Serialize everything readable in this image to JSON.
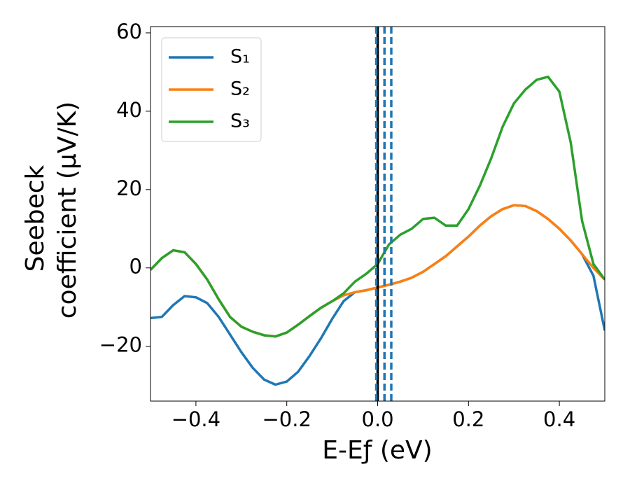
{
  "chart_data": {
    "type": "line",
    "xlabel": "E-Eƒ (eV)",
    "ylabel": [
      "Seebeck",
      "coefficient  (μV/K)"
    ],
    "x": [
      -0.5,
      -0.475,
      -0.45,
      -0.425,
      -0.4,
      -0.375,
      -0.35,
      -0.325,
      -0.3,
      -0.275,
      -0.25,
      -0.225,
      -0.2,
      -0.175,
      -0.15,
      -0.125,
      -0.1,
      -0.075,
      -0.05,
      -0.025,
      0,
      0.025,
      0.05,
      0.075,
      0.1,
      0.125,
      0.15,
      0.175,
      0.2,
      0.225,
      0.25,
      0.275,
      0.3,
      0.325,
      0.35,
      0.375,
      0.4,
      0.425,
      0.45,
      0.475,
      0.5
    ],
    "series": [
      {
        "name": "S₁",
        "color": "#1f77b4",
        "values": [
          -12.8,
          -12.5,
          -9.5,
          -7.2,
          -7.5,
          -9,
          -12.5,
          -17,
          -21.5,
          -25.5,
          -28.5,
          -29.8,
          -29,
          -26.5,
          -22.5,
          -18,
          -13,
          -8.5,
          -6.2,
          -5.7,
          -5,
          -4.3,
          -3.5,
          -2.5,
          -1,
          1,
          3,
          5.5,
          8,
          10.8,
          13.2,
          15,
          16,
          15.8,
          14.5,
          12.5,
          10,
          7,
          3.5,
          -2,
          -16
        ]
      },
      {
        "name": "S₂",
        "color": "#ff7f0e",
        "values": [
          -0.5,
          2.5,
          4.5,
          4,
          1,
          -3,
          -8,
          -12.5,
          -15,
          -16.3,
          -17.2,
          -17.5,
          -16.5,
          -14.5,
          -12.3,
          -10.2,
          -8.5,
          -7,
          -6.2,
          -5.7,
          -5,
          -4.3,
          -3.5,
          -2.5,
          -1,
          1,
          3,
          5.5,
          8,
          10.8,
          13.2,
          15,
          16,
          15.8,
          14.5,
          12.5,
          10,
          7,
          3.5,
          0,
          -3
        ]
      },
      {
        "name": "S₃",
        "color": "#2ca02c",
        "values": [
          -0.5,
          2.5,
          4.5,
          4,
          1,
          -3,
          -8,
          -12.5,
          -15,
          -16.3,
          -17.2,
          -17.5,
          -16.5,
          -14.5,
          -12.3,
          -10.2,
          -8.5,
          -6.5,
          -3.5,
          -1.5,
          1,
          6,
          8.5,
          10,
          12.5,
          12.8,
          10.8,
          10.8,
          15,
          21,
          28,
          36,
          42,
          45.5,
          48,
          48.8,
          45,
          32,
          12,
          1,
          -3
        ]
      }
    ],
    "vlines": [
      {
        "x": 0,
        "color": "#000000",
        "style": "solid"
      },
      {
        "x": -0.003,
        "color": "#1f77b4",
        "style": "dashed"
      },
      {
        "x": 0.015,
        "color": "#1f77b4",
        "style": "dashed"
      },
      {
        "x": 0.03,
        "color": "#1f77b4",
        "style": "dashed"
      }
    ],
    "xlim": [
      -0.5,
      0.5
    ],
    "ylim": [
      -34,
      61.6
    ],
    "xticks": [
      {
        "value": -0.4,
        "label": "−0.4"
      },
      {
        "value": -0.2,
        "label": "−0.2"
      },
      {
        "value": 0,
        "label": "0.0"
      },
      {
        "value": 0.2,
        "label": "0.2"
      },
      {
        "value": 0.4,
        "label": "0.4"
      }
    ],
    "yticks": [
      {
        "value": -20,
        "label": "−20"
      },
      0,
      20,
      40,
      60
    ],
    "legend": "upper left",
    "grid": false
  }
}
